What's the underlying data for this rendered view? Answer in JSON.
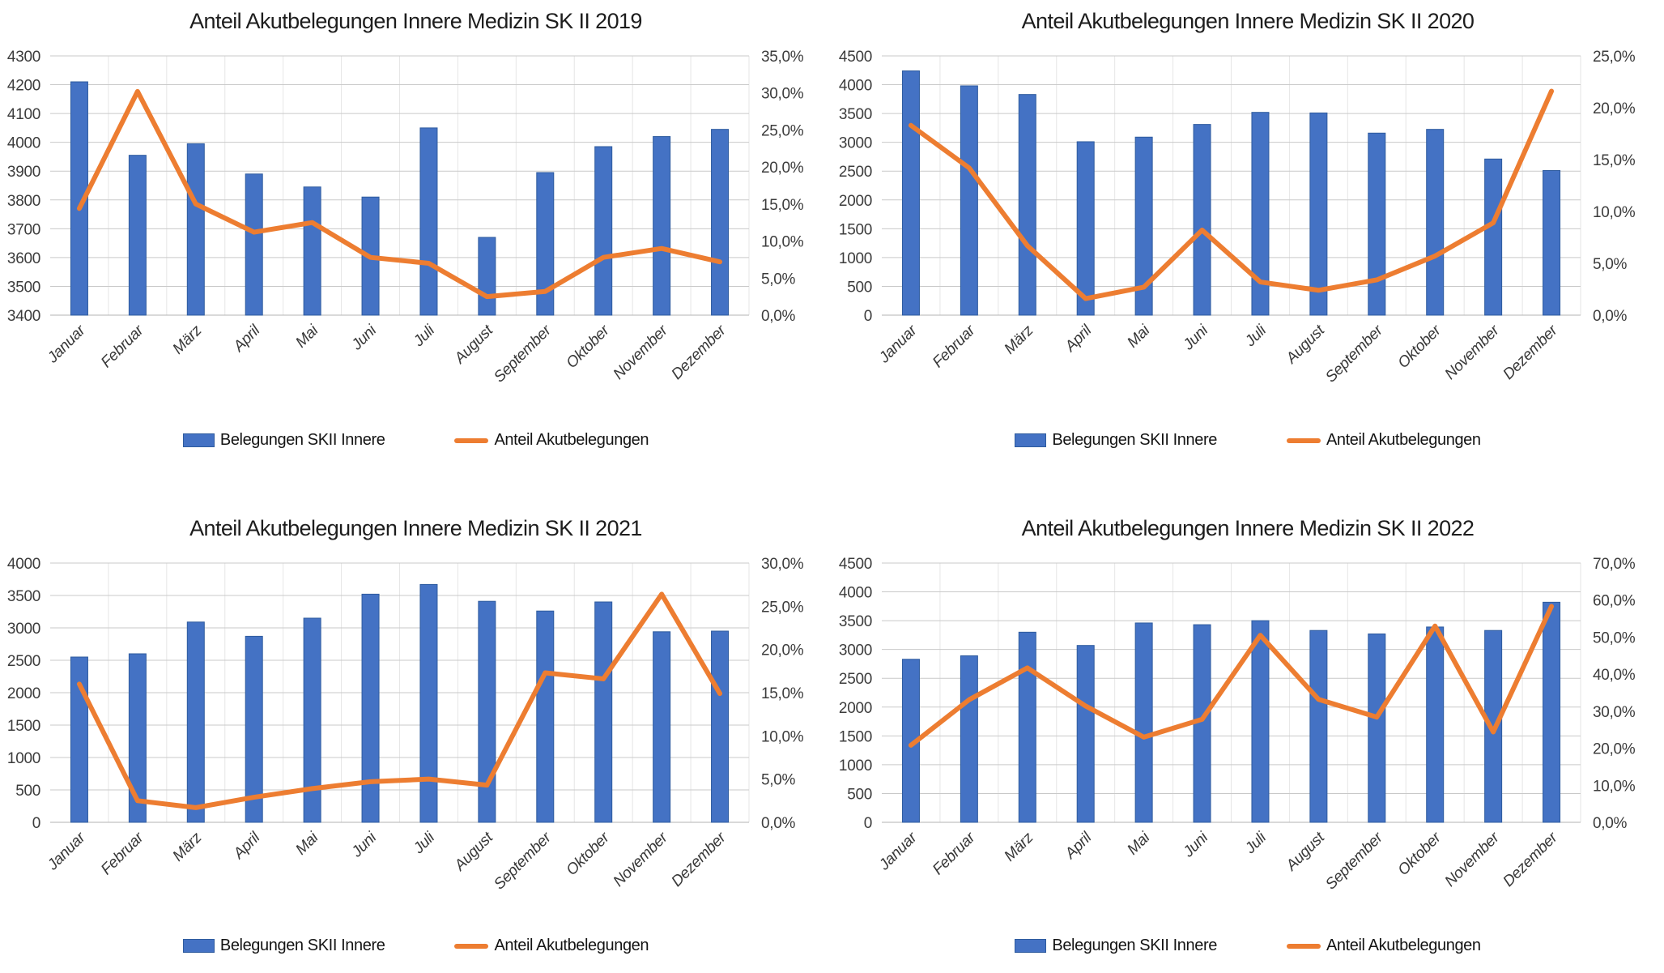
{
  "page": {
    "background": "#ffffff"
  },
  "palette": {
    "bar_fill": "#4472C4",
    "bar_border": "#2E5B9E",
    "line": "#ED7D31",
    "grid": "#C9C9C9",
    "grid_vertical": "#E6E6E6",
    "axis_line": "#B3B3B3",
    "title_text": "#1d1d1d",
    "axis_text": "#3c3c3c"
  },
  "legend": {
    "bar_label": "Belegungen SKII Innere",
    "line_label": "Anteil Akutbelegungen"
  },
  "chart_data": [
    {
      "type": "bar+line",
      "title": "Anteil Akutbelegungen Innere Medizin SK II 2019",
      "categories": [
        "Januar",
        "Februar",
        "März",
        "April",
        "Mai",
        "Juni",
        "Juli",
        "August",
        "September",
        "Oktober",
        "November",
        "Dezember"
      ],
      "series": [
        {
          "name": "Belegungen SKII Innere",
          "type": "bar",
          "axis": "left",
          "values": [
            4210,
            3955,
            3995,
            3890,
            3845,
            3810,
            4050,
            3670,
            3895,
            3985,
            4020,
            4045
          ]
        },
        {
          "name": "Anteil Akutbelegungen",
          "type": "line",
          "axis": "right",
          "unit": "%",
          "values": [
            14.4,
            30.2,
            15.0,
            11.2,
            12.5,
            7.8,
            7.0,
            2.5,
            3.2,
            7.8,
            9.0,
            7.2
          ]
        }
      ],
      "left_axis": {
        "min": 3400,
        "max": 4300,
        "step": 100,
        "labels": [
          "4300",
          "4200",
          "4100",
          "4000",
          "3900",
          "3800",
          "3700",
          "3600",
          "3500",
          "3400"
        ]
      },
      "right_axis": {
        "min": 0,
        "max": 35,
        "step": 5,
        "labels": [
          "35,0%",
          "30,0%",
          "25,0%",
          "20,0%",
          "15,0%",
          "10,0%",
          "5,0%",
          "0,0%"
        ]
      },
      "grid": true,
      "legend_position": "bottom"
    },
    {
      "type": "bar+line",
      "title": "Anteil Akutbelegungen Innere Medizin SK II 2020",
      "categories": [
        "Januar",
        "Februar",
        "März",
        "April",
        "Mai",
        "Juni",
        "Juli",
        "August",
        "September",
        "Oktober",
        "November",
        "Dezember"
      ],
      "series": [
        {
          "name": "Belegungen SKII Innere",
          "type": "bar",
          "axis": "left",
          "values": [
            4240,
            3980,
            3830,
            3010,
            3090,
            3310,
            3520,
            3510,
            3160,
            3225,
            2710,
            2510
          ]
        },
        {
          "name": "Anteil Akutbelegungen",
          "type": "line",
          "axis": "right",
          "unit": "%",
          "values": [
            18.3,
            14.2,
            6.7,
            1.6,
            2.7,
            8.2,
            3.2,
            2.4,
            3.4,
            5.7,
            8.9,
            21.6
          ]
        }
      ],
      "left_axis": {
        "min": 0,
        "max": 4500,
        "step": 500,
        "labels": [
          "4500",
          "4000",
          "3500",
          "3000",
          "2500",
          "2000",
          "1500",
          "1000",
          "500",
          "0"
        ]
      },
      "right_axis": {
        "min": 0,
        "max": 25,
        "step": 5,
        "labels": [
          "25,0%",
          "20,0%",
          "15,0%",
          "10,0%",
          "5,0%",
          "0,0%"
        ]
      },
      "grid": true,
      "legend_position": "bottom"
    },
    {
      "type": "bar+line",
      "title": "Anteil Akutbelegungen Innere Medizin SK II 2021",
      "categories": [
        "Januar",
        "Februar",
        "März",
        "April",
        "Mai",
        "Juni",
        "Juli",
        "August",
        "September",
        "Oktober",
        "November",
        "Dezember"
      ],
      "series": [
        {
          "name": "Belegungen SKII Innere",
          "type": "bar",
          "axis": "left",
          "values": [
            2550,
            2600,
            3090,
            2870,
            3150,
            3520,
            3670,
            3410,
            3260,
            3400,
            2940,
            2950
          ]
        },
        {
          "name": "Anteil Akutbelegungen",
          "type": "line",
          "axis": "right",
          "unit": "%",
          "values": [
            16.0,
            2.5,
            1.7,
            2.9,
            3.9,
            4.7,
            5.0,
            4.3,
            17.3,
            16.6,
            26.4,
            14.9
          ]
        }
      ],
      "left_axis": {
        "min": 0,
        "max": 4000,
        "step": 500,
        "labels": [
          "4000",
          "3500",
          "3000",
          "2500",
          "2000",
          "1500",
          "1000",
          "500",
          "0"
        ]
      },
      "right_axis": {
        "min": 0,
        "max": 30,
        "step": 5,
        "labels": [
          "30,0%",
          "25,0%",
          "20,0%",
          "15,0%",
          "10,0%",
          "5,0%",
          "0,0%"
        ]
      },
      "grid": true,
      "legend_position": "bottom"
    },
    {
      "type": "bar+line",
      "title": "Anteil Akutbelegungen Innere Medizin SK II 2022",
      "categories": [
        "Januar",
        "Februar",
        "März",
        "April",
        "Mai",
        "Juni",
        "Juli",
        "August",
        "September",
        "Oktober",
        "November",
        "Dezember"
      ],
      "series": [
        {
          "name": "Belegungen SKII Innere",
          "type": "bar",
          "axis": "left",
          "values": [
            2830,
            2890,
            3300,
            3070,
            3460,
            3430,
            3500,
            3330,
            3270,
            3390,
            3330,
            3820
          ]
        },
        {
          "name": "Anteil Akutbelegungen",
          "type": "line",
          "axis": "right",
          "unit": "%",
          "values": [
            20.8,
            33.1,
            41.7,
            31.4,
            23.0,
            27.8,
            50.5,
            33.2,
            28.4,
            53.0,
            24.4,
            58.3
          ]
        }
      ],
      "left_axis": {
        "min": 0,
        "max": 4500,
        "step": 500,
        "labels": [
          "4500",
          "4000",
          "3500",
          "3000",
          "2500",
          "2000",
          "1500",
          "1000",
          "500",
          "0"
        ]
      },
      "right_axis": {
        "min": 0,
        "max": 70,
        "step": 10,
        "labels": [
          "70,0%",
          "60,0%",
          "50,0%",
          "40,0%",
          "30,0%",
          "20,0%",
          "10,0%",
          "0,0%"
        ]
      },
      "grid": true,
      "legend_position": "bottom"
    }
  ]
}
